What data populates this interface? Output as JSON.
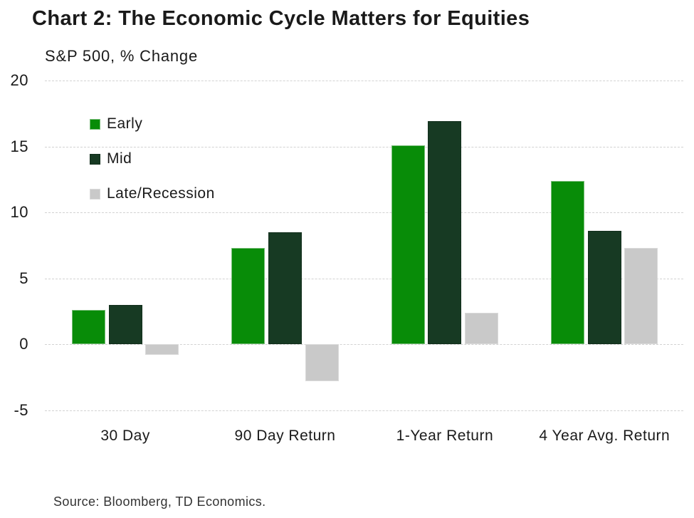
{
  "chart_data": {
    "type": "bar",
    "title": "Chart 2: The Economic Cycle Matters for Equities",
    "subtitle": "S&P 500, % Change",
    "categories": [
      "30 Day",
      "90 Day Return",
      "1-Year Return",
      "4 Year Avg. Return"
    ],
    "series": [
      {
        "name": "Early",
        "color": "#088c08",
        "values": [
          2.6,
          7.3,
          15.1,
          12.4
        ]
      },
      {
        "name": "Mid",
        "color": "#173a23",
        "values": [
          3.0,
          8.5,
          16.9,
          8.6
        ]
      },
      {
        "name": "Late/Recession",
        "color": "#c9c9c9",
        "values": [
          -0.8,
          -2.8,
          2.4,
          7.3
        ]
      }
    ],
    "ylim": [
      -5,
      20
    ],
    "yticks": [
      20,
      15,
      10,
      5,
      0,
      -5
    ],
    "grid": "horizontal-dotted",
    "legend_position": "top-left-inside-plot",
    "colors": {
      "gridline": "#d2d2d2",
      "text": "#1a1a1a",
      "background": "#ffffff"
    }
  },
  "footer": {
    "source": "Source: Bloomberg, TD Economics."
  }
}
